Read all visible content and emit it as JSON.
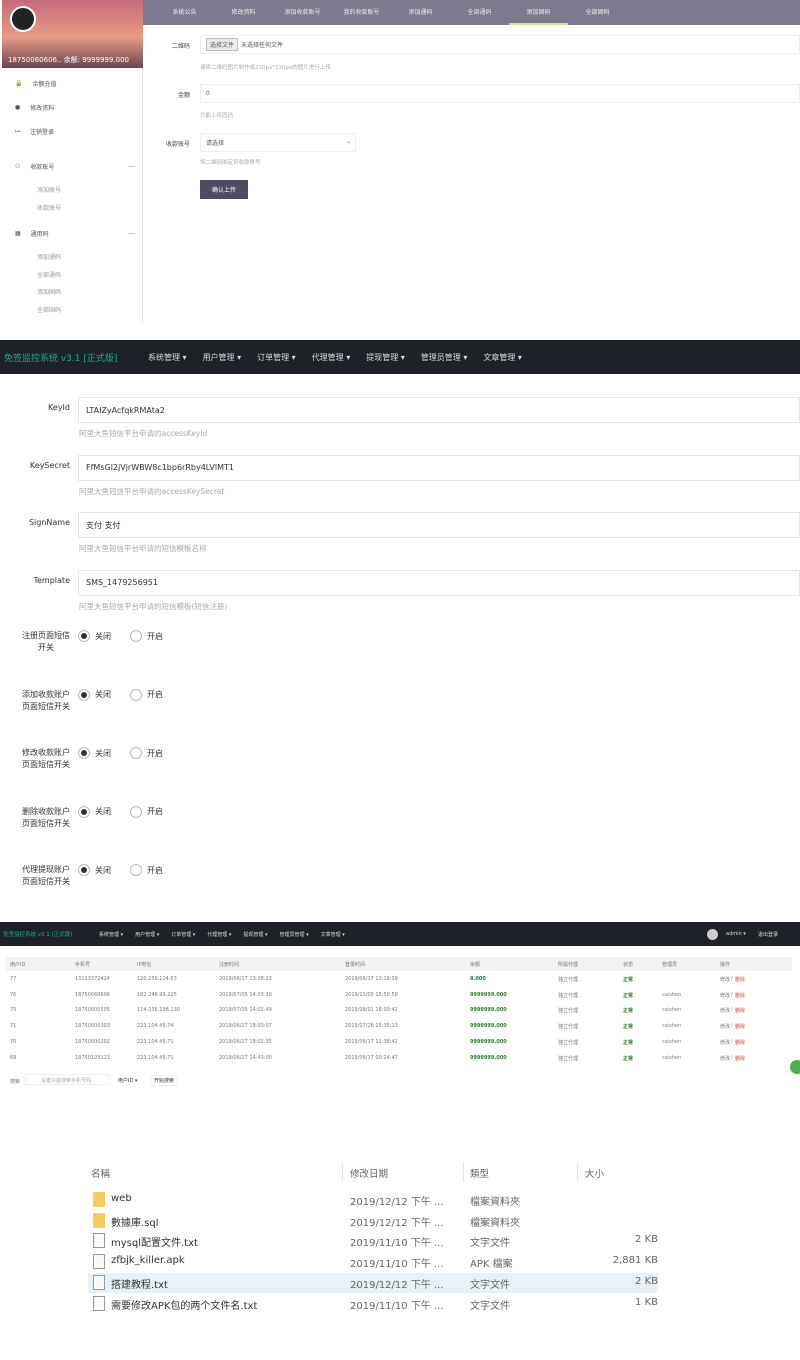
{
  "panel1": {
    "user_info": "18750060606.. 余额: 9999999.000",
    "sidebar": [
      {
        "label": "余额充值",
        "icon": "lock-icon"
      },
      {
        "label": "修改资料",
        "icon": "user-icon"
      },
      {
        "label": "注销登录",
        "icon": "logout-icon"
      }
    ],
    "groups": [
      {
        "label": "收款账号",
        "icon": "users-icon",
        "items": [
          "添加账号",
          "收款账号"
        ]
      },
      {
        "label": "通用码",
        "icon": "qrcode-icon",
        "items": [
          "添加通码",
          "全部通码",
          "添加固码",
          "全部固码"
        ]
      }
    ],
    "collapse_symbol": "—",
    "tabs": [
      "系统公告",
      "修改资料",
      "添加收款账号",
      "我的收款账号",
      "添加通码",
      "全部通码",
      "添加固码",
      "全部固码"
    ],
    "active_tab": 6,
    "form": {
      "qr_label": "二维码",
      "file_button": "选择文件",
      "file_status": "未选择任何文件",
      "qr_help": "请将二维码图片制作成230px*230px的图片进行上传",
      "amount_label": "金额",
      "amount_value": "0",
      "amount_help": "只能上传固码",
      "account_label": "收款账号",
      "account_placeholder": "请选择",
      "account_help": "将二维码绑定到收款账号",
      "submit": "确认上传"
    }
  },
  "panel2": {
    "brand": "免签监控系统 v3.1 [正式版]",
    "menu": [
      "系统管理 ▾",
      "用户管理 ▾",
      "订单管理 ▾",
      "代理管理 ▾",
      "提现管理 ▾",
      "管理员管理 ▾",
      "文章管理 ▾"
    ],
    "fields": [
      {
        "label": "KeyId",
        "value": "LTAIZyAcfqkRMAta2",
        "help": "阿里大鱼短信平台申请的accessKeyId"
      },
      {
        "label": "KeySecret",
        "value": "FfMsGl2jVjrWBW8c1bp6rRby4LVlMT1",
        "help": "阿里大鱼短信平台申请的accessKeySecret"
      },
      {
        "label": "SignName",
        "value": "支付 支付",
        "help": "阿里大鱼短信平台申请的短信模板名称"
      },
      {
        "label": "Template",
        "value": "SMS_1479256951",
        "help": "阿里大鱼短信平台申请的短信模板(短信注册)"
      }
    ],
    "switches": [
      {
        "label": "注册页面短信开关",
        "selected": "关闭"
      },
      {
        "label": "添加收款账户页面短信开关",
        "selected": "关闭"
      },
      {
        "label": "修改收款账户页面短信开关",
        "selected": "关闭"
      },
      {
        "label": "删除收款账户页面短信开关",
        "selected": "关闭"
      },
      {
        "label": "代理提现账户页面短信开关",
        "selected": "关闭"
      }
    ],
    "off_label": "关闭",
    "on_label": "开启"
  },
  "panel3": {
    "brand": "免签监控系统 v3.1 [正式版]",
    "menu": [
      "系统管理 ▾",
      "用户管理 ▾",
      "订单管理 ▾",
      "代理管理 ▾",
      "提现管理 ▾",
      "管理员管理 ▾",
      "文章管理 ▾"
    ],
    "user": "admin ▾",
    "logout": "退出登录",
    "columns": [
      "用户ID",
      "手机号",
      "IP地址",
      "注册时间",
      "登录时间",
      "余额",
      "所属代理",
      "状态",
      "管理员",
      "操作"
    ],
    "rows": [
      [
        "77",
        "13113372424",
        "120.230.124.63",
        "2019/06/17 13:08:22",
        "2019/06/17 13:19:39",
        "8.000",
        "独立代理",
        "正常",
        "",
        "修改",
        "删除"
      ],
      [
        "76",
        "18750060606",
        "182.246.99.225",
        "2019/07/05 14:03:30",
        "2019/11/05 15:50:58",
        "9999999.000",
        "独立代理",
        "正常",
        "caishen",
        "修改",
        "删除"
      ],
      [
        "75",
        "18750000505",
        "114.236.138.130",
        "2019/07/05 14:02:49",
        "2019/08/01 16:00:42",
        "9999999.000",
        "独立代理",
        "正常",
        "caishen",
        "修改",
        "删除"
      ],
      [
        "71",
        "18750000303",
        "223.104.45.74",
        "2019/06/27 18:03:07",
        "2019/07/26 15:35:13",
        "9999999.000",
        "独立代理",
        "正常",
        "caishen",
        "修改",
        "删除"
      ],
      [
        "70",
        "18750000202",
        "223.104.45.71",
        "2019/06/27 18:02:35",
        "2019/06/17 11:38:42",
        "9999999.000",
        "独立代理",
        "正常",
        "caishen",
        "修改",
        "删除"
      ],
      [
        "68",
        "18750123123",
        "223.104.45.71",
        "2019/06/27 14:43:00",
        "2019/06/17 00:24:47",
        "9999999.000",
        "独立代理",
        "正常",
        "caishen",
        "修改",
        "删除"
      ]
    ],
    "search_label": "搜索",
    "search_placeholder": "设置只能搜索手机号码",
    "search_field": "用户ID ▾",
    "search_button": "开始搜索",
    "colors": {
      "balance": "#2e7d32",
      "status": "#2e7d32",
      "delete": "#e53935"
    }
  },
  "panel4": {
    "columns": [
      "名稱",
      "修改日期",
      "類型",
      "大小"
    ],
    "files": [
      {
        "name": "web",
        "date": "2019/12/12 下午 ...",
        "type": "檔案資料夾",
        "size": "",
        "icon": "folder-icon"
      },
      {
        "name": "數據庫.sql",
        "date": "2019/12/12 下午 ...",
        "type": "檔案資料夾",
        "size": "",
        "icon": "folder-icon"
      },
      {
        "name": "mysql配置文件.txt",
        "date": "2019/11/10 下午 ...",
        "type": "文字文件",
        "size": "2 KB",
        "icon": "text-file-icon"
      },
      {
        "name": "zfbjk_killer.apk",
        "date": "2019/11/10 下午 ...",
        "type": "APK 檔案",
        "size": "2,881 KB",
        "icon": "file-icon"
      },
      {
        "name": "搭建教程.txt",
        "date": "2019/12/12 下午 ...",
        "type": "文字文件",
        "size": "2 KB",
        "icon": "text-file-icon",
        "selected": true
      },
      {
        "name": "需要修改APK包的两个文件名.txt",
        "date": "2019/11/10 下午 ...",
        "type": "文字文件",
        "size": "1 KB",
        "icon": "text-file-icon"
      }
    ]
  }
}
